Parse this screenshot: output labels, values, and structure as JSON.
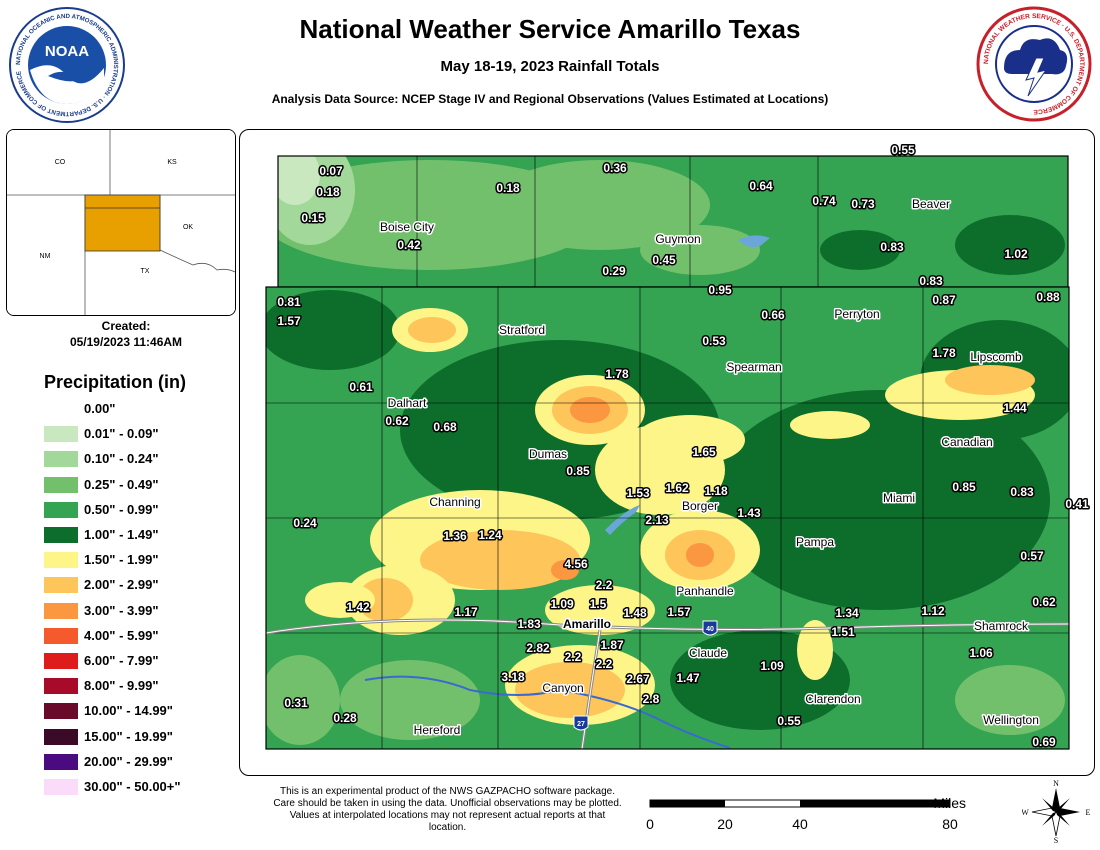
{
  "header": {
    "title": "National Weather Service Amarillo Texas",
    "subtitle": "May 18-19, 2023 Rainfall Totals",
    "source": "Analysis Data Source: NCEP Stage IV and Regional Observations (Values Estimated at Locations)",
    "noaa_logo": {
      "text": "NOAA",
      "ring": "NATIONAL OCEANIC AND ATMOSPHERIC ADMINISTRATION · U.S. DEPARTMENT OF COMMERCE",
      "icon": "noaa-seal-icon"
    },
    "nws_logo": {
      "ring": "NATIONAL WEATHER SERVICE · U.S. DEPARTMENT OF COMMERCE",
      "icon": "nws-seal-icon"
    }
  },
  "inset": {
    "states": [
      "CO",
      "KS",
      "NM",
      "OK",
      "TX"
    ],
    "highlight_color": "#e89f00"
  },
  "created": {
    "label": "Created:",
    "value": "05/19/2023 11:46AM"
  },
  "legend": {
    "title": "Precipitation (in)",
    "items": [
      {
        "label": "0.00\"",
        "color": "#ffffff"
      },
      {
        "label": "0.01\" - 0.09\"",
        "color": "#c9e8c0"
      },
      {
        "label": "0.10\" - 0.24\"",
        "color": "#a2d99a"
      },
      {
        "label": "0.25\" - 0.49\"",
        "color": "#72c06c"
      },
      {
        "label": "0.50\" - 0.99\"",
        "color": "#34a352"
      },
      {
        "label": "1.00\" - 1.49\"",
        "color": "#0d6e2c"
      },
      {
        "label": "1.50\" - 1.99\"",
        "color": "#fdf587"
      },
      {
        "label": "2.00\" - 2.99\"",
        "color": "#fdc55a"
      },
      {
        "label": "3.00\" - 3.99\"",
        "color": "#fb9641"
      },
      {
        "label": "4.00\" - 5.99\"",
        "color": "#f55a2c"
      },
      {
        "label": "6.00\" - 7.99\"",
        "color": "#de1c1c"
      },
      {
        "label": "8.00\" - 9.99\"",
        "color": "#a80a2a"
      },
      {
        "label": "10.00\" - 14.99\"",
        "color": "#6a0a2a"
      },
      {
        "label": "15.00\" - 19.99\"",
        "color": "#3a0a26"
      },
      {
        "label": "20.00\" - 29.99\"",
        "color": "#4a0a80"
      },
      {
        "label": "30.00\" - 50.00+\"",
        "color": "#fadcfa"
      }
    ]
  },
  "map": {
    "cities": [
      "Boise City",
      "Guymon",
      "Beaver",
      "Stratford",
      "Perryton",
      "Spearman",
      "Lipscomb",
      "Dalhart",
      "Canadian",
      "Dumas",
      "Channing",
      "Borger",
      "Miami",
      "Pampa",
      "Panhandle",
      "Amarillo",
      "Shamrock",
      "Claude",
      "Canyon",
      "Clarendon",
      "Hereford",
      "Wellington"
    ],
    "rainfall_values": [
      "0.07",
      "0.18",
      "0.15",
      "0.42",
      "0.18",
      "0.36",
      "0.29",
      "0.45",
      "0.64",
      "0.74",
      "0.73",
      "0.55",
      "0.83",
      "1.02",
      "0.83",
      "0.81",
      "1.57",
      "0.95",
      "0.66",
      "0.87",
      "0.88",
      "0.53",
      "1.78",
      "1.78",
      "0.61",
      "0.62",
      "0.68",
      "1.44",
      "1.65",
      "0.85",
      "1.53",
      "1.62",
      "1.18",
      "0.85",
      "0.83",
      "0.41",
      "0.24",
      "1.36",
      "1.24",
      "2.13",
      "1.43",
      "0.57",
      "4.56",
      "2.2",
      "1.42",
      "1.17",
      "1.09",
      "1.5",
      "1.48",
      "1.57",
      "1.34",
      "1.12",
      "0.62",
      "1.83",
      "1.51",
      "2.82",
      "2.2",
      "1.87",
      "2.2",
      "1.06",
      "3.18",
      "2.67",
      "1.47",
      "1.09",
      "2.8",
      "0.31",
      "0.28",
      "0.55",
      "0.69"
    ],
    "highway_shields": [
      "40",
      "27"
    ]
  },
  "disclaimer": "This is an experimental product of the NWS GAZPACHO software package. Care should be taken in using the data. Unofficial observations may be plotted. Values at interpolated locations may not represent actual reports at that location.",
  "scale": {
    "unit": "Miles",
    "ticks": [
      "0",
      "20",
      "40",
      "80"
    ]
  },
  "compass": {
    "n": "N",
    "s": "S",
    "e": "E",
    "w": "W"
  }
}
